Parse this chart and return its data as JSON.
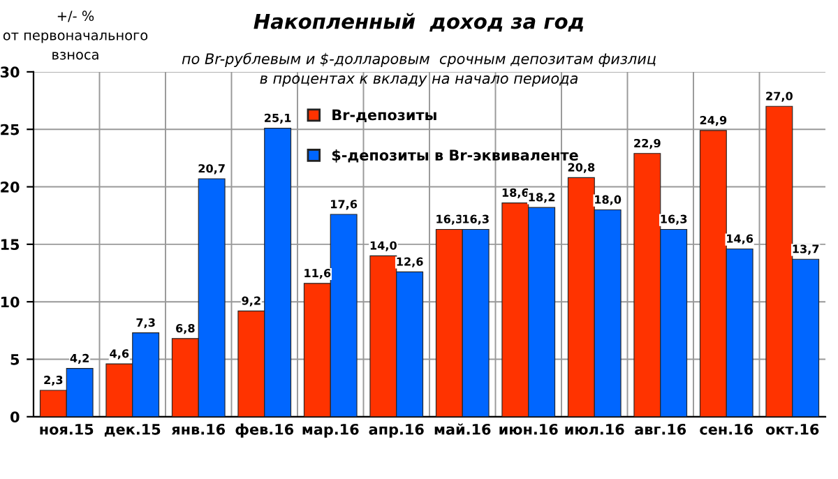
{
  "chart_data": {
    "type": "bar",
    "title": "Накопленный  доход за год",
    "subtitle": "по Br-рублевым и $-долларовым  срочным депозитам физлиц\nв процентах к вкладу на начало периода",
    "ylabel": "+/- %\nот первоначального\nвзноса",
    "categories": [
      "ноя.15",
      "дек.15",
      "янв.16",
      "фев.16",
      "мар.16",
      "апр.16",
      "май.16",
      "июн.16",
      "июл.16",
      "авг.16",
      "сен.16",
      "окт.16"
    ],
    "series": [
      {
        "name": "Br-депозиты",
        "color": "#ff3300",
        "values": [
          2.3,
          4.6,
          6.8,
          9.2,
          11.6,
          14.0,
          16.3,
          18.6,
          20.8,
          22.9,
          24.9,
          27.0
        ],
        "value_labels": [
          "2,3",
          "4,6",
          "6,8",
          "9,2",
          "11,6",
          "14,0",
          "16,3",
          "18,6",
          "20,8",
          "22,9",
          "24,9",
          "27,0"
        ]
      },
      {
        "name": "$-депозиты в Br-эквиваленте",
        "color": "#0066ff",
        "values": [
          4.2,
          7.3,
          20.7,
          25.1,
          17.6,
          12.6,
          16.3,
          18.2,
          18.0,
          16.3,
          14.6,
          13.7
        ],
        "value_labels": [
          "4,2",
          "7,3",
          "20,7",
          "25,1",
          "17,6",
          "12,6",
          "16,3",
          "18,2",
          "18,0",
          "16,3",
          "14,6",
          "13,7"
        ]
      }
    ],
    "ylim": [
      0,
      30
    ],
    "yticks": [
      0,
      5,
      10,
      15,
      20,
      25,
      30
    ],
    "grid": true,
    "legend": "top left"
  }
}
